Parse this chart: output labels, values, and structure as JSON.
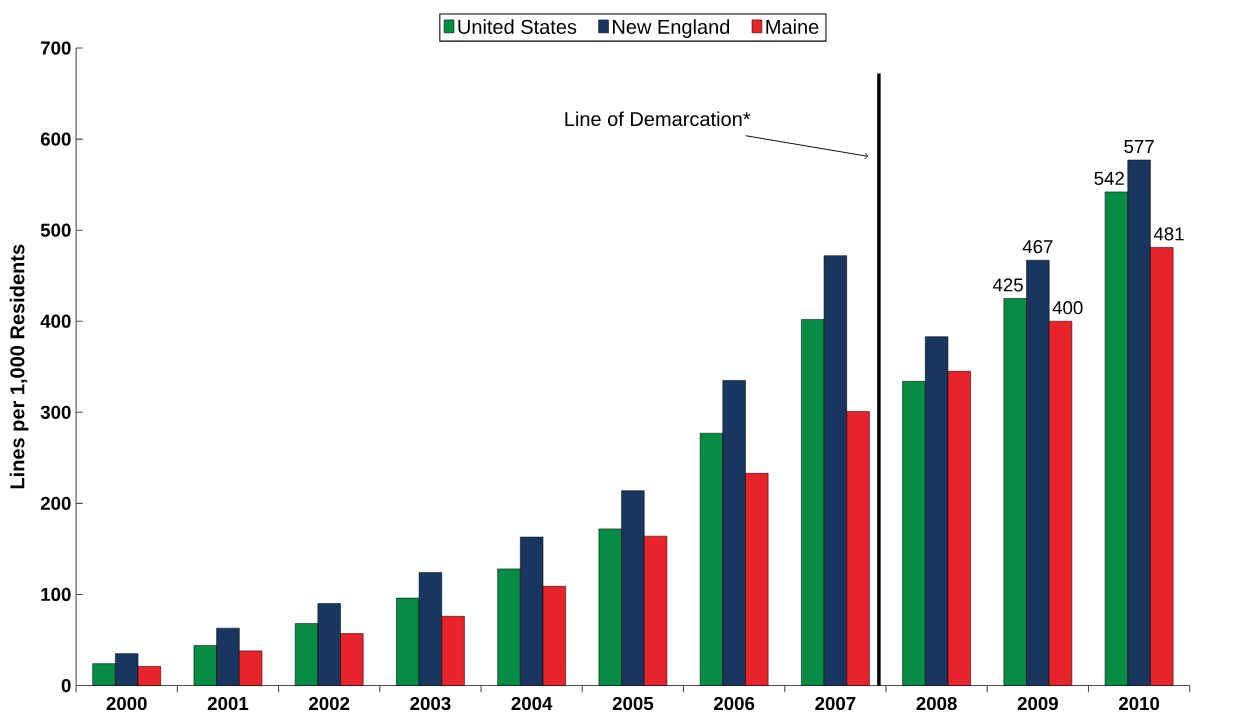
{
  "chart_data": {
    "type": "bar",
    "ylabel": "Lines per 1,000 Residents",
    "categories": [
      "2000",
      "2001",
      "2002",
      "2003",
      "2004",
      "2005",
      "2006",
      "2007",
      "2008",
      "2009",
      "2010"
    ],
    "series": [
      {
        "name": "United States",
        "color": "#078c44",
        "values": [
          24,
          44,
          68,
          96,
          128,
          172,
          277,
          402,
          334,
          425,
          542
        ],
        "value_labels": [
          null,
          null,
          null,
          null,
          null,
          null,
          null,
          null,
          null,
          "425",
          "542"
        ]
      },
      {
        "name": "New England",
        "color": "#18365e",
        "values": [
          35,
          63,
          90,
          124,
          163,
          214,
          335,
          472,
          383,
          467,
          577
        ],
        "value_labels": [
          null,
          null,
          null,
          null,
          null,
          null,
          null,
          null,
          null,
          "467",
          "577"
        ]
      },
      {
        "name": "Maine",
        "color": "#e8232a",
        "values": [
          21,
          38,
          57,
          76,
          109,
          164,
          233,
          301,
          345,
          400,
          481
        ],
        "value_labels": [
          null,
          null,
          null,
          null,
          null,
          null,
          null,
          null,
          null,
          "400",
          "481"
        ]
      }
    ],
    "ylim": [
      0,
      700
    ],
    "yticks": [
      0,
      100,
      200,
      300,
      400,
      500,
      600,
      700
    ],
    "annotations": [
      "Line of Demarcation*"
    ],
    "legend": "top",
    "grid": false
  }
}
